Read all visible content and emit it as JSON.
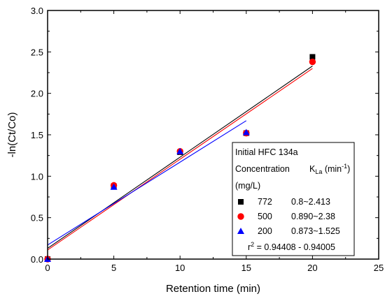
{
  "chart_data": {
    "type": "scatter",
    "xlabel": "Retention time (min)",
    "ylabel": "-ln(Ct/Co)",
    "xlim": [
      0,
      25
    ],
    "ylim": [
      0.0,
      3.0
    ],
    "xticks": [
      "0",
      "5",
      "10",
      "15",
      "20",
      "25"
    ],
    "yticks": [
      "0.0",
      "0.5",
      "1.0",
      "1.5",
      "2.0",
      "2.5",
      "3.0"
    ],
    "grid": false,
    "legend_position": "bottom-right",
    "series": [
      {
        "name": "772",
        "marker": "square",
        "color": "#000000",
        "x": [
          0,
          5,
          10,
          15,
          20
        ],
        "y": [
          0.0,
          0.88,
          1.29,
          1.52,
          2.44
        ],
        "fit": {
          "x": [
            0,
            20
          ],
          "y": [
            0.13,
            2.33
          ]
        }
      },
      {
        "name": "500",
        "marker": "circle",
        "color": "#ff0000",
        "x": [
          0,
          5,
          10,
          15,
          20
        ],
        "y": [
          0.0,
          0.89,
          1.3,
          1.52,
          2.38
        ],
        "fit": {
          "x": [
            0,
            20
          ],
          "y": [
            0.11,
            2.3
          ]
        }
      },
      {
        "name": "200",
        "marker": "triangle",
        "color": "#0000ff",
        "x": [
          0,
          5,
          10,
          15
        ],
        "y": [
          0.0,
          0.87,
          1.3,
          1.53
        ],
        "fit": {
          "x": [
            0,
            15
          ],
          "y": [
            0.17,
            1.67
          ]
        }
      }
    ],
    "legend": {
      "title_line1": "Initial HFC 134a",
      "title_line2_left": "Concentration",
      "title_line2_right_main": "K",
      "title_line2_right_sub": "La",
      "title_line2_right_unit_pre": " (min",
      "title_line2_right_unit_sup": "-1",
      "title_line2_right_unit_post": ")",
      "title_line3": "(mg/L)",
      "entries": [
        {
          "label": "772",
          "value": "0.8~2.413"
        },
        {
          "label": "500",
          "value": "0.890~2.38"
        },
        {
          "label": "200",
          "value": "0.873~1.525"
        }
      ],
      "r2_pre": "r",
      "r2_sup": "2",
      "r2_post": " = 0.94408 - 0.94005"
    }
  }
}
